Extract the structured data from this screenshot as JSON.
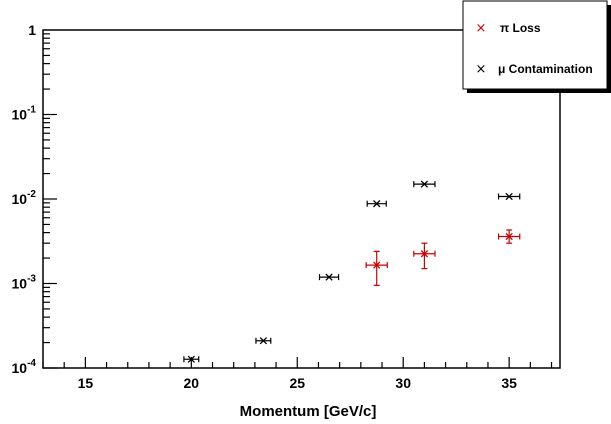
{
  "chart_data": {
    "type": "scatter",
    "xlabel": "Momentum [GeV/c]",
    "ylabel": "",
    "xlim": [
      13,
      37.4
    ],
    "ylim": [
      0.0001,
      1
    ],
    "yscale": "log",
    "x_ticks": [
      15,
      20,
      25,
      30,
      35
    ],
    "y_ticks": [
      {
        "value": 0.0001,
        "base": "10",
        "exp": "-4"
      },
      {
        "value": 0.001,
        "base": "10",
        "exp": "-3"
      },
      {
        "value": 0.01,
        "base": "10",
        "exp": "-2"
      },
      {
        "value": 0.1,
        "base": "10",
        "exp": "-1"
      },
      {
        "value": 1,
        "base": "1",
        "exp": ""
      }
    ],
    "grid": false,
    "legend_position": "top-right",
    "series": [
      {
        "name": "π Loss",
        "color": "#cc0000",
        "points": [
          {
            "x": 28.75,
            "y": 0.00165,
            "xerr": 0.5,
            "y_low": 0.00095,
            "y_high": 0.0024
          },
          {
            "x": 31.0,
            "y": 0.00225,
            "xerr": 0.5,
            "y_low": 0.0015,
            "y_high": 0.003
          },
          {
            "x": 35.0,
            "y": 0.0036,
            "xerr": 0.5,
            "y_low": 0.003,
            "y_high": 0.0043
          }
        ]
      },
      {
        "name": "μ Contamination",
        "color": "#000000",
        "points": [
          {
            "x": 20.0,
            "y": 0.000127,
            "xerr": 0.35
          },
          {
            "x": 23.4,
            "y": 0.00021,
            "xerr": 0.35
          },
          {
            "x": 26.5,
            "y": 0.00119,
            "xerr": 0.45
          },
          {
            "x": 28.75,
            "y": 0.0088,
            "xerr": 0.45
          },
          {
            "x": 31.0,
            "y": 0.015,
            "xerr": 0.5
          },
          {
            "x": 35.0,
            "y": 0.0107,
            "xerr": 0.5
          }
        ]
      }
    ]
  }
}
